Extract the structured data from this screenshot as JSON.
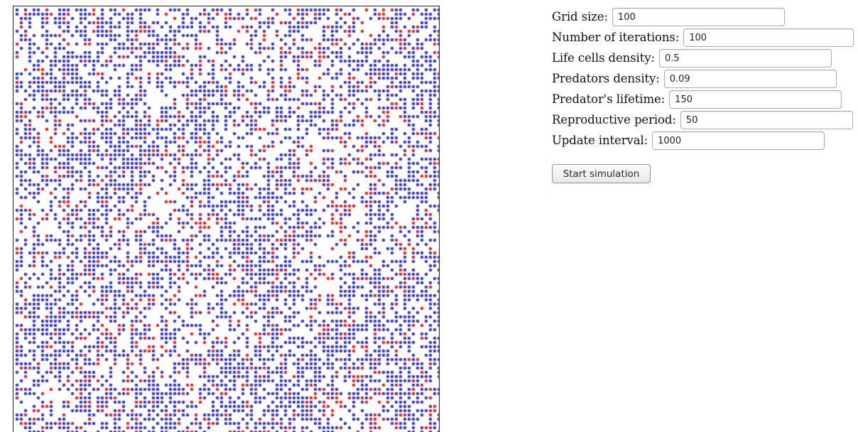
{
  "simulation": {
    "grid_size": 100,
    "prey_color": "#3b3bc8",
    "predator_color": "#e8262a",
    "empty_color": "#ffffff",
    "border_color": "#222222"
  },
  "form": {
    "fields": [
      {
        "key": "grid_size",
        "label": "Grid size:",
        "value": "100"
      },
      {
        "key": "iterations",
        "label": "Number of iterations:",
        "value": "100"
      },
      {
        "key": "life_density",
        "label": "Life cells density:",
        "value": "0.5"
      },
      {
        "key": "predator_density",
        "label": "Predators density:",
        "value": "0.09"
      },
      {
        "key": "predator_lifetime",
        "label": "Predator's lifetime:",
        "value": "150"
      },
      {
        "key": "reproductive_period",
        "label": "Reproductive period:",
        "value": "50"
      },
      {
        "key": "update_interval",
        "label": "Update interval:",
        "value": "1000"
      }
    ],
    "start_button_label": "Start simulation"
  }
}
